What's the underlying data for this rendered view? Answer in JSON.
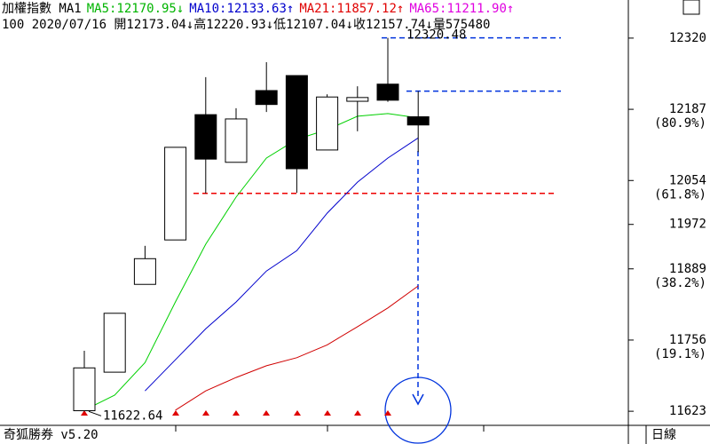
{
  "chart_data": {
    "type": "candlestick",
    "header": [
      [
        {
          "text": "加權指數 MA1",
          "color": "#000000"
        },
        {
          "text": "MA5:12170.95↓",
          "color": "#00b400"
        },
        {
          "text": "MA10:12133.63↑",
          "color": "#0000cc"
        },
        {
          "text": "MA21:11857.12↑",
          "color": "#e00000"
        },
        {
          "text": "MA65:11211.90↑",
          "color": "#e000e0"
        }
      ],
      [
        {
          "text": "100 2020/07/16 開12173.04↓高12220.93↓低12107.04↓收12157.74↓量575480",
          "color": "#000000"
        }
      ]
    ],
    "candles": [
      {
        "open": 11624,
        "high": 11736,
        "low": 11623,
        "close": 11704
      },
      {
        "open": 11696,
        "high": 11806,
        "low": 11696,
        "close": 11806
      },
      {
        "open": 11860,
        "high": 11932,
        "low": 11860,
        "close": 11908
      },
      {
        "open": 11943,
        "high": 12116,
        "low": 11943,
        "close": 12116
      },
      {
        "open": 12177,
        "high": 12247,
        "low": 12030,
        "close": 12094
      },
      {
        "open": 12088,
        "high": 12189,
        "low": 12088,
        "close": 12169
      },
      {
        "open": 12222,
        "high": 12275,
        "low": 12182,
        "close": 12196
      },
      {
        "open": 12250,
        "high": 12250,
        "low": 12031,
        "close": 12076
      },
      {
        "open": 12111,
        "high": 12215,
        "low": 12111,
        "close": 12210
      },
      {
        "open": 12202,
        "high": 12230,
        "low": 12146,
        "close": 12209
      },
      {
        "open": 12234,
        "high": 12320.48,
        "low": 12201,
        "close": 12204
      },
      {
        "open": 12173.04,
        "high": 12220.93,
        "low": 12107.04,
        "close": 12157.74
      }
    ],
    "series": [
      {
        "name": "MA5",
        "color": "#00d000",
        "values": [
          11625,
          11653,
          11714,
          11827,
          11935,
          12023,
          12096,
          12131,
          12149,
          12174,
          12179,
          12170.95
        ]
      },
      {
        "name": "MA10",
        "color": "#0000cc",
        "values": [
          null,
          null,
          11661,
          11719,
          11777,
          11827,
          11885,
          11923,
          11993,
          12051,
          12096,
          12133.63
        ]
      },
      {
        "name": "MA21",
        "color": "#d00000",
        "values": [
          null,
          null,
          null,
          11625,
          11661,
          11686,
          11708,
          11723,
          11747,
          11781,
          11816,
          11857.12
        ]
      }
    ],
    "levels": [
      {
        "value": 12320.48,
        "color": "#0033dd"
      },
      {
        "value": 12220.93,
        "color": "#0033dd"
      },
      {
        "value": 12030,
        "color": "#ee0000"
      }
    ],
    "annotations": [
      {
        "text": "12320.48",
        "value": 12320.48
      },
      {
        "text": "11622.64",
        "value": 11622.64
      }
    ],
    "ylim": [
      11595,
      12358
    ],
    "yticks": [
      12320,
      12187,
      12054,
      11972,
      11889,
      11756,
      11623
    ],
    "fib_labels": [
      {
        "value": 12187,
        "label": "(80.9%)"
      },
      {
        "value": 12054,
        "label": "(61.8%)"
      },
      {
        "value": 11889,
        "label": "(38.2%)"
      },
      {
        "value": 11756,
        "label": "(19.1%)"
      }
    ],
    "footer_left": "奇狐勝券 v5.20",
    "footer_right": "日線"
  }
}
